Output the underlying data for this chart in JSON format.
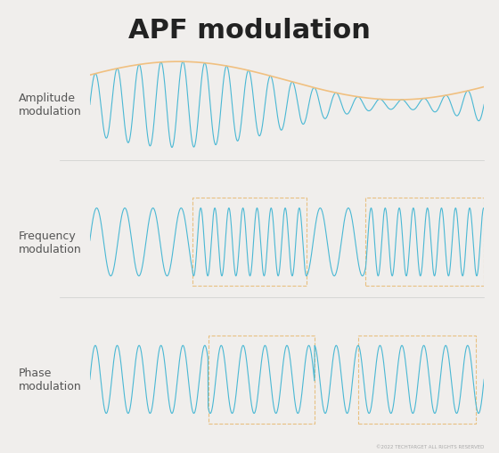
{
  "title": "APF modulation",
  "title_fontsize": 22,
  "title_fontweight": "bold",
  "bg_color": "#f0eeec",
  "panel_color": "#ffffff",
  "wave_color": "#4ab8d4",
  "envelope_color": "#f0c080",
  "box_color": "#e8c080",
  "label_color": "#555555",
  "label_fontsize": 9,
  "separator_color": "#cccccc",
  "labels": [
    "Amplitude\nmodulation",
    "Frequency\nmodulation",
    "Phase\nmodulation"
  ],
  "panel_bg": "#f8f8f8"
}
